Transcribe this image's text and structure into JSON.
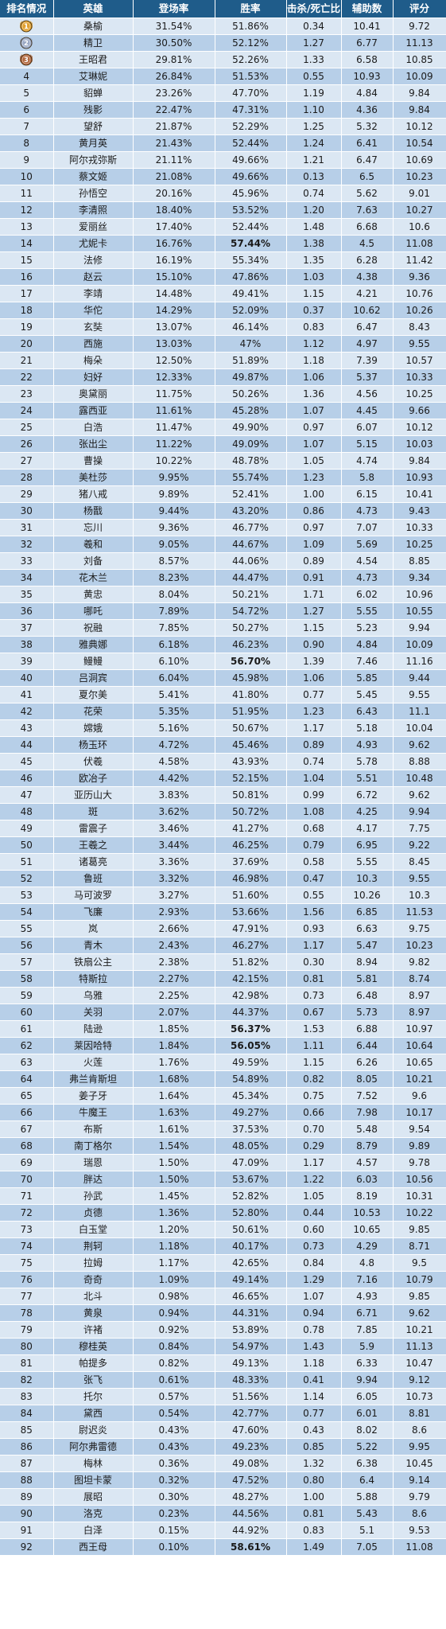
{
  "headers": [
    "排名情况",
    "英雄",
    "登场率",
    "胜率",
    "击杀/死亡比",
    "辅助数",
    "评分"
  ],
  "rows": [
    [
      "1",
      "桑榆",
      "31.54%",
      "51.86%",
      "0.34",
      "10.41",
      "9.72"
    ],
    [
      "2",
      "精卫",
      "30.50%",
      "52.12%",
      "1.27",
      "6.77",
      "11.13"
    ],
    [
      "3",
      "王昭君",
      "29.81%",
      "52.26%",
      "1.33",
      "6.58",
      "10.85"
    ],
    [
      "4",
      "艾琳妮",
      "26.84%",
      "51.53%",
      "0.55",
      "10.93",
      "10.09"
    ],
    [
      "5",
      "貂蝉",
      "23.26%",
      "47.70%",
      "1.19",
      "4.84",
      "9.84"
    ],
    [
      "6",
      "残影",
      "22.47%",
      "47.31%",
      "1.10",
      "4.36",
      "9.84"
    ],
    [
      "7",
      "望舒",
      "21.87%",
      "52.29%",
      "1.25",
      "5.32",
      "10.12"
    ],
    [
      "8",
      "黄月英",
      "21.43%",
      "52.44%",
      "1.24",
      "6.41",
      "10.54"
    ],
    [
      "9",
      "阿尔戎弥斯",
      "21.11%",
      "49.66%",
      "1.21",
      "6.47",
      "10.69"
    ],
    [
      "10",
      "蔡文姬",
      "21.08%",
      "49.66%",
      "0.13",
      "6.5",
      "10.23"
    ],
    [
      "11",
      "孙悟空",
      "20.16%",
      "45.96%",
      "0.74",
      "5.62",
      "9.01"
    ],
    [
      "12",
      "李清照",
      "18.40%",
      "53.52%",
      "1.20",
      "7.63",
      "10.27"
    ],
    [
      "13",
      "爱丽丝",
      "17.40%",
      "52.44%",
      "1.48",
      "6.68",
      "10.6"
    ],
    [
      "14",
      "尤妮卡",
      "16.76%",
      "57.44%",
      "1.38",
      "4.5",
      "11.08"
    ],
    [
      "15",
      "法修",
      "16.19%",
      "55.34%",
      "1.35",
      "6.28",
      "11.42"
    ],
    [
      "16",
      "赵云",
      "15.10%",
      "47.86%",
      "1.03",
      "4.38",
      "9.36"
    ],
    [
      "17",
      "李靖",
      "14.48%",
      "49.41%",
      "1.15",
      "4.21",
      "10.76"
    ],
    [
      "18",
      "华佗",
      "14.29%",
      "52.09%",
      "0.37",
      "10.62",
      "10.26"
    ],
    [
      "19",
      "玄奘",
      "13.07%",
      "46.14%",
      "0.83",
      "6.47",
      "8.43"
    ],
    [
      "20",
      "西施",
      "13.03%",
      "47%",
      "1.12",
      "4.97",
      "9.55"
    ],
    [
      "21",
      "梅朵",
      "12.50%",
      "51.89%",
      "1.18",
      "7.39",
      "10.57"
    ],
    [
      "22",
      "妇好",
      "12.33%",
      "49.87%",
      "1.06",
      "5.37",
      "10.33"
    ],
    [
      "23",
      "奥黛丽",
      "11.75%",
      "50.26%",
      "1.36",
      "4.56",
      "10.25"
    ],
    [
      "24",
      "露西亚",
      "11.61%",
      "45.28%",
      "1.07",
      "4.45",
      "9.66"
    ],
    [
      "25",
      "白浩",
      "11.47%",
      "49.90%",
      "0.97",
      "6.07",
      "10.12"
    ],
    [
      "26",
      "张出尘",
      "11.22%",
      "49.09%",
      "1.07",
      "5.15",
      "10.03"
    ],
    [
      "27",
      "曹操",
      "10.22%",
      "48.78%",
      "1.05",
      "4.74",
      "9.84"
    ],
    [
      "28",
      "美杜莎",
      "9.95%",
      "55.74%",
      "1.23",
      "5.8",
      "10.93"
    ],
    [
      "29",
      "猪八戒",
      "9.89%",
      "52.41%",
      "1.00",
      "6.15",
      "10.41"
    ],
    [
      "30",
      "杨戬",
      "9.44%",
      "43.20%",
      "0.86",
      "4.73",
      "9.43"
    ],
    [
      "31",
      "忘川",
      "9.36%",
      "46.77%",
      "0.97",
      "7.07",
      "10.33"
    ],
    [
      "32",
      "羲和",
      "9.05%",
      "44.67%",
      "1.09",
      "5.69",
      "10.25"
    ],
    [
      "33",
      "刘备",
      "8.57%",
      "44.06%",
      "0.89",
      "4.54",
      "8.85"
    ],
    [
      "34",
      "花木兰",
      "8.23%",
      "44.47%",
      "0.91",
      "4.73",
      "9.34"
    ],
    [
      "35",
      "黄忠",
      "8.04%",
      "50.21%",
      "1.71",
      "6.02",
      "10.96"
    ],
    [
      "36",
      "哪吒",
      "7.89%",
      "54.72%",
      "1.27",
      "5.55",
      "10.55"
    ],
    [
      "37",
      "祝融",
      "7.85%",
      "50.27%",
      "1.15",
      "5.23",
      "9.94"
    ],
    [
      "38",
      "雅典娜",
      "6.18%",
      "46.23%",
      "0.90",
      "4.84",
      "10.09"
    ],
    [
      "39",
      "鳗鳗",
      "6.10%",
      "56.70%",
      "1.39",
      "7.46",
      "11.16"
    ],
    [
      "40",
      "吕洞宾",
      "6.04%",
      "45.98%",
      "1.06",
      "5.85",
      "9.44"
    ],
    [
      "41",
      "夏尔美",
      "5.41%",
      "41.80%",
      "0.77",
      "5.45",
      "9.55"
    ],
    [
      "42",
      "花荣",
      "5.35%",
      "51.95%",
      "1.23",
      "6.43",
      "11.1"
    ],
    [
      "43",
      "嫦娥",
      "5.16%",
      "50.67%",
      "1.17",
      "5.18",
      "10.04"
    ],
    [
      "44",
      "杨玉环",
      "4.72%",
      "45.46%",
      "0.89",
      "4.93",
      "9.62"
    ],
    [
      "45",
      "伏羲",
      "4.58%",
      "43.93%",
      "0.74",
      "5.78",
      "8.88"
    ],
    [
      "46",
      "欧冶子",
      "4.42%",
      "52.15%",
      "1.04",
      "5.51",
      "10.48"
    ],
    [
      "47",
      "亚历山大",
      "3.83%",
      "50.81%",
      "0.99",
      "6.72",
      "9.62"
    ],
    [
      "48",
      "斑",
      "3.62%",
      "50.72%",
      "1.08",
      "4.25",
      "9.94"
    ],
    [
      "49",
      "雷震子",
      "3.46%",
      "41.27%",
      "0.68",
      "4.17",
      "7.75"
    ],
    [
      "50",
      "王羲之",
      "3.44%",
      "46.25%",
      "0.79",
      "6.95",
      "9.22"
    ],
    [
      "51",
      "诸葛亮",
      "3.36%",
      "37.69%",
      "0.58",
      "5.55",
      "8.45"
    ],
    [
      "52",
      "鲁班",
      "3.32%",
      "46.98%",
      "0.47",
      "10.3",
      "9.55"
    ],
    [
      "53",
      "马可波罗",
      "3.27%",
      "51.60%",
      "0.55",
      "10.26",
      "10.3"
    ],
    [
      "54",
      "飞廉",
      "2.93%",
      "53.66%",
      "1.56",
      "6.85",
      "11.53"
    ],
    [
      "55",
      "岚",
      "2.66%",
      "47.91%",
      "0.93",
      "6.63",
      "9.75"
    ],
    [
      "56",
      "青木",
      "2.43%",
      "46.27%",
      "1.17",
      "5.47",
      "10.23"
    ],
    [
      "57",
      "铁扇公主",
      "2.38%",
      "51.82%",
      "0.30",
      "8.94",
      "9.82"
    ],
    [
      "58",
      "特斯拉",
      "2.27%",
      "42.15%",
      "0.81",
      "5.81",
      "8.74"
    ],
    [
      "59",
      "乌雅",
      "2.25%",
      "42.98%",
      "0.73",
      "6.48",
      "8.97"
    ],
    [
      "60",
      "关羽",
      "2.07%",
      "44.37%",
      "0.67",
      "5.73",
      "8.97"
    ],
    [
      "61",
      "陆逊",
      "1.85%",
      "56.37%",
      "1.53",
      "6.88",
      "10.97"
    ],
    [
      "62",
      "莱因哈特",
      "1.84%",
      "56.05%",
      "1.11",
      "6.44",
      "10.64"
    ],
    [
      "63",
      "火莲",
      "1.76%",
      "49.59%",
      "1.15",
      "6.26",
      "10.65"
    ],
    [
      "64",
      "弗兰肯斯坦",
      "1.68%",
      "54.89%",
      "0.82",
      "8.05",
      "10.21"
    ],
    [
      "65",
      "姜子牙",
      "1.64%",
      "45.34%",
      "0.75",
      "7.52",
      "9.6"
    ],
    [
      "66",
      "牛魔王",
      "1.63%",
      "49.27%",
      "0.66",
      "7.98",
      "10.17"
    ],
    [
      "67",
      "布斯",
      "1.61%",
      "37.53%",
      "0.70",
      "5.48",
      "9.54"
    ],
    [
      "68",
      "南丁格尔",
      "1.54%",
      "48.05%",
      "0.29",
      "8.79",
      "9.89"
    ],
    [
      "69",
      "瑞恩",
      "1.50%",
      "47.09%",
      "1.17",
      "4.57",
      "9.78"
    ],
    [
      "70",
      "胖达",
      "1.50%",
      "53.67%",
      "1.22",
      "6.03",
      "10.56"
    ],
    [
      "71",
      "孙武",
      "1.45%",
      "52.82%",
      "1.05",
      "8.19",
      "10.31"
    ],
    [
      "72",
      "贞德",
      "1.36%",
      "52.80%",
      "0.44",
      "10.53",
      "10.22"
    ],
    [
      "73",
      "白玉堂",
      "1.20%",
      "50.61%",
      "0.60",
      "10.65",
      "9.85"
    ],
    [
      "74",
      "荆轲",
      "1.18%",
      "40.17%",
      "0.73",
      "4.29",
      "8.71"
    ],
    [
      "75",
      "拉姆",
      "1.17%",
      "42.65%",
      "0.84",
      "4.8",
      "9.5"
    ],
    [
      "76",
      "奇奇",
      "1.09%",
      "49.14%",
      "1.29",
      "7.16",
      "10.79"
    ],
    [
      "77",
      "北斗",
      "0.98%",
      "46.65%",
      "1.07",
      "4.93",
      "9.85"
    ],
    [
      "78",
      "黄泉",
      "0.94%",
      "44.31%",
      "0.94",
      "6.71",
      "9.62"
    ],
    [
      "79",
      "许褚",
      "0.92%",
      "53.89%",
      "0.78",
      "7.85",
      "10.21"
    ],
    [
      "80",
      "穆桂英",
      "0.84%",
      "54.97%",
      "1.43",
      "5.9",
      "11.13"
    ],
    [
      "81",
      "帕提多",
      "0.82%",
      "49.13%",
      "1.18",
      "6.33",
      "10.47"
    ],
    [
      "82",
      "张飞",
      "0.61%",
      "48.33%",
      "0.41",
      "9.94",
      "9.12"
    ],
    [
      "83",
      "托尔",
      "0.57%",
      "51.56%",
      "1.14",
      "6.05",
      "10.73"
    ],
    [
      "84",
      "黛西",
      "0.54%",
      "42.77%",
      "0.77",
      "6.01",
      "8.81"
    ],
    [
      "85",
      "尉迟炎",
      "0.43%",
      "47.60%",
      "0.43",
      "8.02",
      "8.6"
    ],
    [
      "86",
      "阿尔弗雷德",
      "0.43%",
      "49.23%",
      "0.85",
      "5.22",
      "9.95"
    ],
    [
      "87",
      "梅林",
      "0.36%",
      "49.08%",
      "1.32",
      "6.38",
      "10.45"
    ],
    [
      "88",
      "图坦卡蒙",
      "0.32%",
      "47.52%",
      "0.80",
      "6.4",
      "9.14"
    ],
    [
      "89",
      "展昭",
      "0.30%",
      "48.27%",
      "1.00",
      "5.88",
      "9.79"
    ],
    [
      "90",
      "洛克",
      "0.23%",
      "44.56%",
      "0.81",
      "5.43",
      "8.6"
    ],
    [
      "91",
      "白泽",
      "0.15%",
      "44.92%",
      "0.83",
      "5.1",
      "9.53"
    ],
    [
      "92",
      "西王母",
      "0.10%",
      "58.61%",
      "1.49",
      "7.05",
      "11.08"
    ]
  ],
  "highlight_win_rates": [
    "57.44%",
    "56.70%",
    "56.37%",
    "56.05%",
    "58.61%"
  ],
  "colors": {
    "header_bg": "#1f5c8a",
    "row_light": "#dbe7f3",
    "row_dark": "#b7cfe8",
    "highlight_text": "#e8231a",
    "medal_gold": "#e0a030",
    "medal_silver": "#9aa8c4",
    "medal_bronze": "#b0643a"
  },
  "medals": [
    "gold-medal-icon",
    "silver-medal-icon",
    "bronze-medal-icon"
  ]
}
